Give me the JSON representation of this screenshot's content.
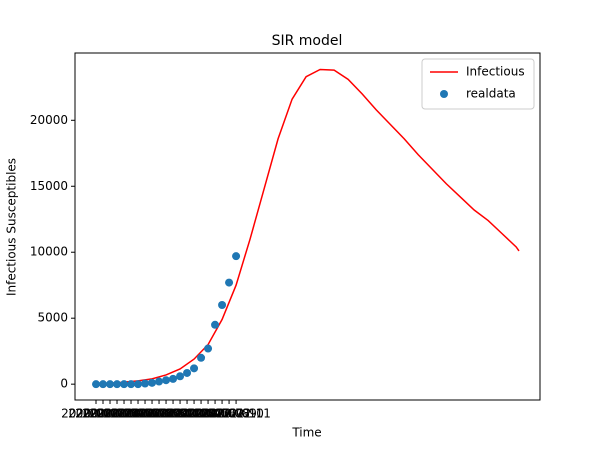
{
  "chart_data": {
    "type": "line",
    "title": "SIR model",
    "x_label": "Time",
    "y_label": "Infectious Susceptibles",
    "categories": [
      "2020-01-22",
      "2020-01-23",
      "2020-01-24",
      "2020-01-25",
      "2020-01-26",
      "2020-01-27",
      "2020-01-28",
      "2020-01-29",
      "2020-01-30",
      "2020-01-31",
      "2020-02-01",
      "2020-02-02",
      "2020-02-03",
      "2020-02-04",
      "2020-02-05",
      "2020-02-06",
      "2020-02-07",
      "2020-02-08",
      "2020-02-09",
      "2020-02-10",
      "2020-02-11"
    ],
    "series": [
      {
        "name": "Infectious",
        "color": "#ff0000",
        "type": "line",
        "x": [
          0,
          2,
          4,
          6,
          8,
          10,
          12,
          14,
          16,
          18,
          20,
          22,
          24,
          26,
          28,
          30,
          32,
          34,
          36,
          38,
          40,
          42,
          44,
          46,
          48,
          50,
          52,
          54,
          56,
          58,
          60,
          60.4
        ],
        "values": [
          40,
          80,
          150,
          250,
          400,
          700,
          1150,
          1900,
          3000,
          4900,
          7500,
          11000,
          14800,
          18600,
          21600,
          23300,
          23850,
          23800,
          23100,
          22000,
          20800,
          19700,
          18600,
          17400,
          16300,
          15200,
          14200,
          13200,
          12400,
          11400,
          10400,
          10100
        ]
      },
      {
        "name": "realdata",
        "color": "#1f77b4",
        "type": "scatter",
        "values": [
          0,
          0,
          0,
          0,
          0,
          0,
          0,
          50,
          100,
          200,
          300,
          400,
          600,
          850,
          1200,
          2000,
          2700,
          4500,
          6000,
          7700,
          9700
        ]
      }
    ],
    "xlim": [
      -3,
      63.4
    ],
    "ylim": [
      -1200,
      25100
    ],
    "yticks": [
      0,
      5000,
      10000,
      15000,
      20000
    ],
    "legend": "upper right"
  }
}
